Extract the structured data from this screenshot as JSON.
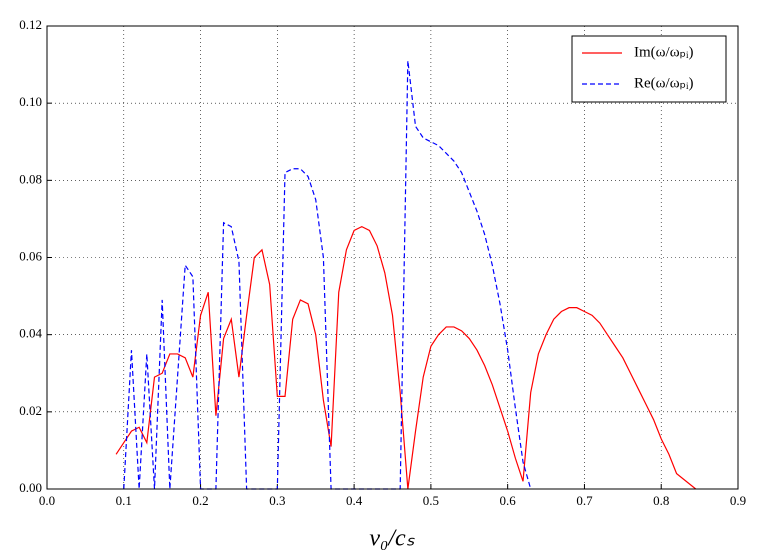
{
  "chart_data": {
    "type": "line",
    "xlabel": "v₀/cₛ",
    "xlim": [
      0,
      0.9
    ],
    "ylim": [
      0,
      0.12
    ],
    "xticks": [
      {
        "value": 0,
        "label": "0.0"
      },
      0.1,
      0.2,
      0.3,
      0.4,
      0.5,
      0.6,
      0.7,
      0.8,
      0.9
    ],
    "yticks": [
      {
        "value": 0,
        "label": "0.00"
      },
      0.02,
      0.04,
      0.06,
      0.08,
      {
        "value": 0.1,
        "label": "0.10"
      },
      0.12
    ],
    "grid": true,
    "legend": "upper right",
    "series": [
      {
        "name": "Im(ω/ωₚᵢ)",
        "color": "#ff0000",
        "style": "solid",
        "x": [
          0.09,
          0.1,
          0.11,
          0.12,
          0.13,
          0.14,
          0.15,
          0.16,
          0.17,
          0.18,
          0.19,
          0.2,
          0.21,
          0.22,
          0.23,
          0.24,
          0.25,
          0.26,
          0.27,
          0.28,
          0.29,
          0.3,
          0.31,
          0.32,
          0.33,
          0.34,
          0.35,
          0.36,
          0.37,
          0.38,
          0.39,
          0.4,
          0.41,
          0.42,
          0.43,
          0.44,
          0.45,
          0.46,
          0.47,
          0.48,
          0.49,
          0.5,
          0.51,
          0.52,
          0.53,
          0.54,
          0.55,
          0.56,
          0.57,
          0.58,
          0.59,
          0.6,
          0.61,
          0.62,
          0.63,
          0.64,
          0.65,
          0.66,
          0.67,
          0.68,
          0.69,
          0.7,
          0.71,
          0.72,
          0.73,
          0.74,
          0.75,
          0.76,
          0.77,
          0.78,
          0.79,
          0.8,
          0.81,
          0.82,
          0.845
        ],
        "values": [
          0.009,
          0.012,
          0.015,
          0.016,
          0.012,
          0.029,
          0.03,
          0.035,
          0.035,
          0.034,
          0.029,
          0.045,
          0.051,
          0.019,
          0.039,
          0.044,
          0.029,
          0.045,
          0.06,
          0.062,
          0.053,
          0.024,
          0.024,
          0.044,
          0.049,
          0.048,
          0.04,
          0.023,
          0.011,
          0.051,
          0.062,
          0.067,
          0.068,
          0.067,
          0.063,
          0.056,
          0.045,
          0.025,
          0,
          0.015,
          0.029,
          0.037,
          0.04,
          0.042,
          0.042,
          0.041,
          0.039,
          0.036,
          0.032,
          0.027,
          0.021,
          0.015,
          0.008,
          0.002,
          0.025,
          0.035,
          0.04,
          0.044,
          0.046,
          0.047,
          0.047,
          0.046,
          0.045,
          0.043,
          0.04,
          0.037,
          0.034,
          0.03,
          0.026,
          0.022,
          0.018,
          0.013,
          0.009,
          0.004,
          0
        ]
      },
      {
        "name": "Re(ω/ωₚᵢ)",
        "color": "#0000ff",
        "style": "dashed",
        "x": [
          0.1,
          0.11,
          0.12,
          0.13,
          0.14,
          0.15,
          0.16,
          0.18,
          0.19,
          0.2,
          0.22,
          0.23,
          0.24,
          0.25,
          0.26,
          0.3,
          0.31,
          0.32,
          0.33,
          0.34,
          0.35,
          0.36,
          0.37,
          0.46,
          0.47,
          0.48,
          0.49,
          0.5,
          0.51,
          0.52,
          0.53,
          0.54,
          0.55,
          0.56,
          0.57,
          0.58,
          0.59,
          0.6,
          0.61,
          0.62,
          0.63
        ],
        "values": [
          0,
          0.036,
          0,
          0.035,
          0,
          0.049,
          0,
          0.058,
          0.055,
          0,
          0,
          0.069,
          0.068,
          0.059,
          0,
          0,
          0.082,
          0.083,
          0.083,
          0.081,
          0.075,
          0.06,
          0,
          0,
          0.111,
          0.094,
          0.091,
          0.09,
          0.089,
          0.087,
          0.085,
          0.082,
          0.077,
          0.072,
          0.066,
          0.058,
          0.048,
          0.036,
          0.021,
          0.007,
          0
        ]
      }
    ]
  }
}
